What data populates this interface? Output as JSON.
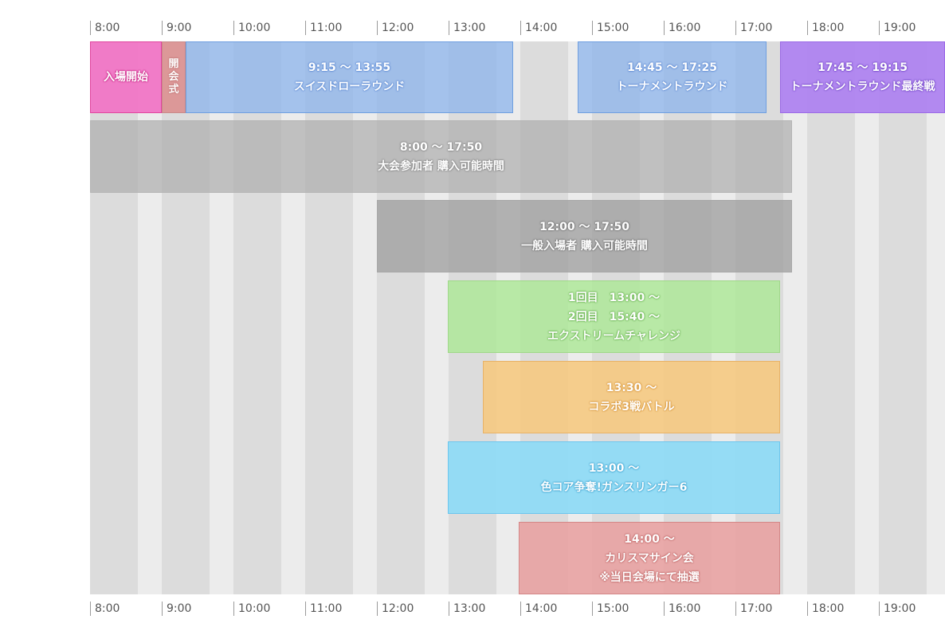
{
  "timeline": {
    "hours": [
      "8:00",
      "9:00",
      "10:00",
      "11:00",
      "12:00",
      "13:00",
      "14:00",
      "15:00",
      "16:00",
      "17:00",
      "18:00",
      "19:00"
    ]
  },
  "events": {
    "entry_open": {
      "label": "入場開始",
      "color": "#f172c4"
    },
    "ceremony": {
      "label_lines": [
        "開",
        "会",
        "式"
      ],
      "color": "#dc8c8c"
    },
    "swiss": {
      "time": "9:15 〜 13:55",
      "name": "スイスドローラウンド",
      "color": "#8cb4ec"
    },
    "tournament": {
      "time": "14:45 〜 17:25",
      "name": "トーナメントラウンド",
      "color": "#8cb4ec"
    },
    "final": {
      "time": "17:45 〜 19:15",
      "name": "トーナメントラウンド最終戦",
      "color": "#ac80f0"
    },
    "participants": {
      "time": "8:00 〜 17:50",
      "name": "大会参加者 購入可能時間",
      "color": "#afafaf"
    },
    "general": {
      "time": "12:00 〜 17:50",
      "name": "一般入場者 購入可能時間",
      "color": "#a0a0a0"
    },
    "extreme": {
      "line1": "1回目　13:00 〜",
      "line2": "2回目　15:40 〜",
      "name": "エクストリームチャレンジ",
      "color": "#ace896"
    },
    "collab": {
      "time": "13:30 〜",
      "name": "コラボ3戦バトル",
      "color": "#f6c87e"
    },
    "gunslinger": {
      "time": "13:00 〜",
      "name": "色コア争奪!ガンスリンガー6",
      "color": "#8cdaf6"
    },
    "charisma": {
      "time": "14:00 〜",
      "name": "カリスマサイン会",
      "note": "※当日会場にて抽選",
      "color": "#e8a0a0"
    }
  }
}
